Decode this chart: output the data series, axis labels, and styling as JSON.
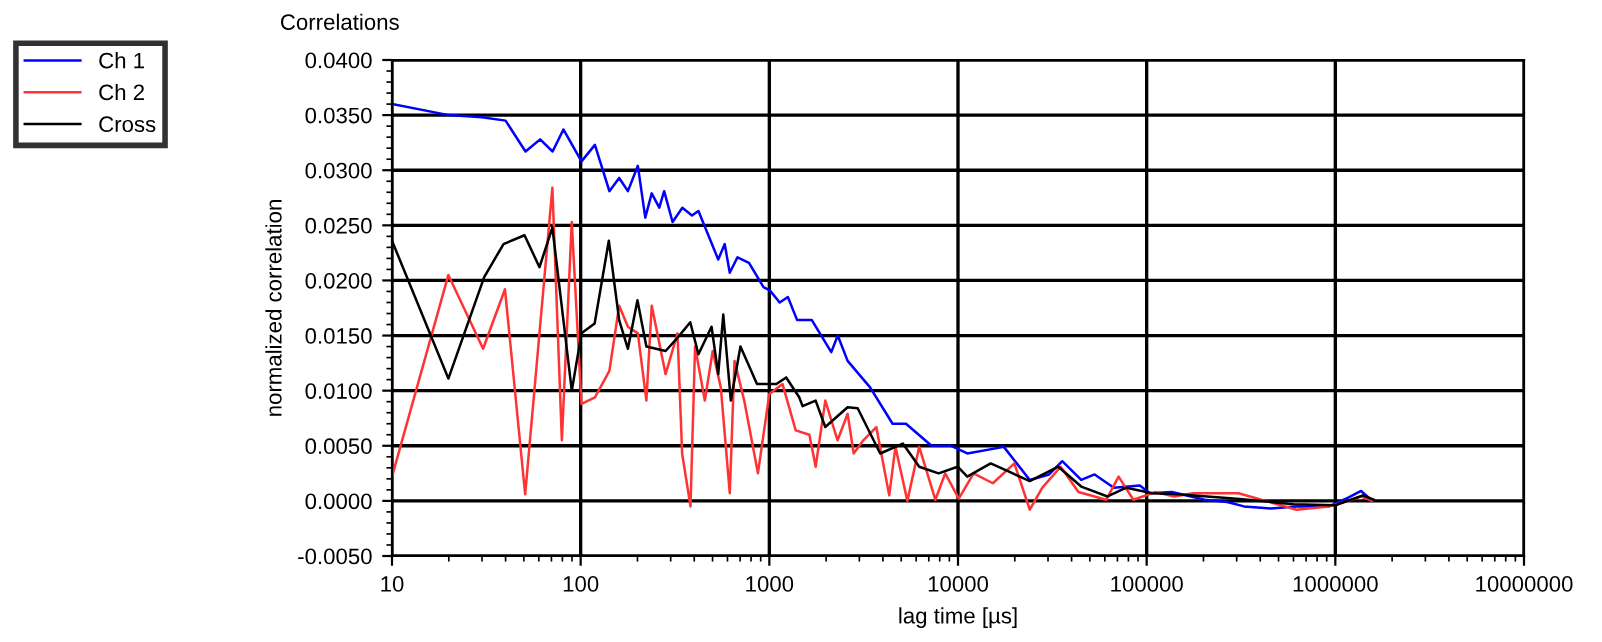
{
  "chart_data": {
    "type": "line",
    "title": "Correlations",
    "xlabel": "lag time [µs]",
    "ylabel": "normalized correlation",
    "log": "x",
    "xlim": [
      10,
      10000000
    ],
    "xticks": [
      10,
      100,
      1000,
      10000,
      100000,
      1000000,
      10000000
    ],
    "ylim": [
      -0.005,
      0.04
    ],
    "yticks": [
      {
        "value": -0.005,
        "label": "-0.0050"
      },
      {
        "value": 0,
        "label": "0.0000"
      },
      {
        "value": 0.005,
        "label": "0.0050"
      },
      {
        "value": 0.01,
        "label": "0.0100"
      },
      {
        "value": 0.015,
        "label": "0.0150"
      },
      {
        "value": 0.02,
        "label": "0.0200"
      },
      {
        "value": 0.025,
        "label": "0.0250"
      },
      {
        "value": 0.03,
        "label": "0.0300"
      },
      {
        "value": 0.035,
        "label": "0.0350"
      },
      {
        "value": 0.04,
        "label": "0.0400"
      }
    ],
    "grid": true,
    "legend": "left",
    "marker": "none",
    "line_style": "solid",
    "series": [
      {
        "name": "Ch 1",
        "color": "#0000ff",
        "x": [
          10,
          20,
          30,
          40,
          51,
          61,
          71,
          81,
          101,
          119,
          142,
          160,
          178,
          201,
          220,
          238,
          261,
          277,
          307,
          346,
          389,
          421,
          536,
          580,
          617,
          678,
          780,
          931,
          1006,
          1135,
          1254,
          1404,
          1680,
          2130,
          2305,
          2600,
          3420,
          4500,
          5300,
          7240,
          9200,
          11200,
          17500,
          24000,
          30400,
          35700,
          45000,
          53000,
          67000,
          92000,
          104000,
          136000,
          203000,
          267000,
          328000,
          455000,
          622000,
          925000,
          1170000,
          1370000,
          1570000
        ],
        "values": [
          0.036,
          0.035,
          0.0348,
          0.0345,
          0.0317,
          0.0328,
          0.0317,
          0.0337,
          0.0308,
          0.0323,
          0.0281,
          0.0293,
          0.0281,
          0.0304,
          0.0257,
          0.0279,
          0.0266,
          0.0281,
          0.0253,
          0.0266,
          0.0259,
          0.0263,
          0.0219,
          0.0233,
          0.0207,
          0.0221,
          0.0216,
          0.0194,
          0.0191,
          0.018,
          0.0185,
          0.0164,
          0.0164,
          0.0135,
          0.015,
          0.0127,
          0.0103,
          0.007,
          0.007,
          0.005,
          0.005,
          0.0043,
          0.0049,
          0.0019,
          0.0024,
          0.0036,
          0.0019,
          0.0024,
          0.0012,
          0.0014,
          0.0007,
          0.0008,
          0.0001,
          -0.0001,
          -0.0005,
          -0.0007,
          -0.0005,
          -0.0005,
          0.0003,
          0.0009,
          0.0
        ]
      },
      {
        "name": "Ch 2",
        "color": "#ff3333",
        "x": [
          10,
          19.9,
          30.4,
          39.7,
          50.8,
          70.8,
          79.5,
          89.7,
          101,
          119,
          142,
          160,
          178,
          201,
          223,
          238,
          282,
          326,
          345,
          382,
          404,
          455,
          501,
          553,
          617,
          654,
          736,
          870,
          1000,
          1175,
          1380,
          1630,
          1760,
          1980,
          2300,
          2600,
          2800,
          3150,
          3690,
          4320,
          4660,
          5390,
          6230,
          7590,
          8550,
          10100,
          12100,
          15300,
          19900,
          24000,
          28000,
          35000,
          43500,
          61000,
          71000,
          85000,
          111000,
          140000,
          176000,
          307000,
          622000,
          925000,
          1170000,
          1370000,
          1570000
        ],
        "values": [
          0.0022,
          0.0205,
          0.0138,
          0.0192,
          0.0006,
          0.0284,
          0.0055,
          0.0253,
          0.0088,
          0.0094,
          0.0118,
          0.0177,
          0.0158,
          0.0152,
          0.0091,
          0.0177,
          0.0115,
          0.0152,
          0.0043,
          -0.0005,
          0.014,
          0.0091,
          0.0136,
          0.0103,
          0.0007,
          0.0127,
          0.0091,
          0.0025,
          0.0097,
          0.0106,
          0.0064,
          0.006,
          0.0031,
          0.0091,
          0.0055,
          0.0079,
          0.0043,
          0.0055,
          0.0067,
          0.0005,
          0.0049,
          0.0,
          0.0049,
          0.0001,
          0.0025,
          0.0002,
          0.0025,
          0.0016,
          0.0034,
          -0.0008,
          0.0012,
          0.0031,
          0.0008,
          0.0001,
          0.0022,
          0.0001,
          0.0008,
          0.0004,
          0.0007,
          0.0007,
          -0.0008,
          -0.0005,
          0.0,
          0.0004,
          0.0
        ]
      },
      {
        "name": "Cross",
        "color": "#000000",
        "x": [
          10,
          19.9,
          30.8,
          39,
          50.4,
          60.5,
          70.8,
          81,
          89.7,
          101,
          118.6,
          141,
          160,
          178,
          200,
          223,
          282,
          330,
          381,
          421,
          494,
          536,
          570,
          625,
          703,
          860,
          1090,
          1228,
          1440,
          1500,
          1760,
          1980,
          2600,
          2940,
          3870,
          5100,
          6230,
          7890,
          9960,
          11200,
          14900,
          18900,
          24000,
          34000,
          45000,
          62000,
          78000,
          107000,
          146000,
          300000,
          600000,
          1000000,
          1400000,
          1600000
        ],
        "values": [
          0.0236,
          0.0111,
          0.0203,
          0.0233,
          0.0241,
          0.0212,
          0.0248,
          0.0164,
          0.01,
          0.0152,
          0.0161,
          0.0236,
          0.0164,
          0.0138,
          0.0182,
          0.014,
          0.0136,
          0.0149,
          0.0162,
          0.0133,
          0.0158,
          0.0115,
          0.0169,
          0.0091,
          0.014,
          0.0106,
          0.0106,
          0.0112,
          0.0094,
          0.0086,
          0.0091,
          0.0067,
          0.0085,
          0.0084,
          0.0043,
          0.0052,
          0.0031,
          0.0025,
          0.0031,
          0.0022,
          0.0034,
          0.0026,
          0.0018,
          0.0031,
          0.0013,
          0.0004,
          0.0012,
          0.0007,
          0.0006,
          0.0002,
          -0.0003,
          -0.0004,
          0.0005,
          0.0001
        ]
      }
    ]
  }
}
